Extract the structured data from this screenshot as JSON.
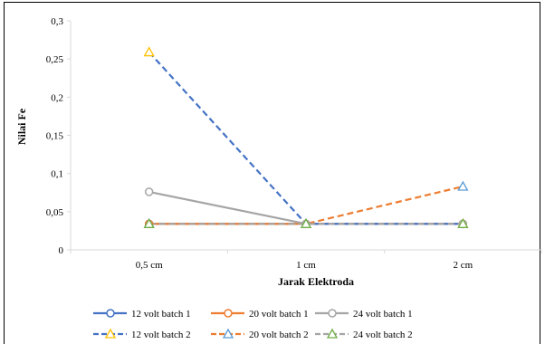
{
  "chart_data": {
    "type": "line",
    "xlabel": "Jarak Elektroda",
    "ylabel": "Nilai Fe",
    "categories": [
      "0,5 cm",
      "1 cm",
      "2 cm"
    ],
    "y_ticks": [
      "0",
      "0,05",
      "0,1",
      "0,15",
      "0,2",
      "0,25",
      "0,3"
    ],
    "ylim": [
      0,
      0.3
    ],
    "grid": false,
    "legend_position": "bottom",
    "series": [
      {
        "name": "12 volt batch 1",
        "values": [
          0.034,
          0.034,
          0.034
        ],
        "color": "#4472C4",
        "dash": "solid",
        "marker": "circle"
      },
      {
        "name": "20 volt batch 1",
        "values": [
          0.034,
          0.034,
          0.034
        ],
        "color": "#ED7D31",
        "dash": "solid",
        "marker": "circle"
      },
      {
        "name": "24 volt batch 1",
        "values": [
          0.076,
          0.034,
          0.034
        ],
        "color": "#A5A5A5",
        "dash": "solid",
        "marker": "circle"
      },
      {
        "name": "12 volt batch 2",
        "values": [
          0.259,
          0.034,
          0.034
        ],
        "color": "#4472C4",
        "marker_color": "#FFC000",
        "dash": "dashed",
        "marker": "triangle"
      },
      {
        "name": "20 volt batch 2",
        "values": [
          0.034,
          0.034,
          0.083
        ],
        "color": "#ED7D31",
        "marker_color": "#5B9BD5",
        "dash": "dashed",
        "marker": "triangle"
      },
      {
        "name": "24 volt batch 2",
        "values": [
          0.034,
          0.034,
          0.034
        ],
        "color": "#A5A5A5",
        "marker_color": "#70AD47",
        "dash": "dashed",
        "marker": "triangle"
      }
    ]
  }
}
